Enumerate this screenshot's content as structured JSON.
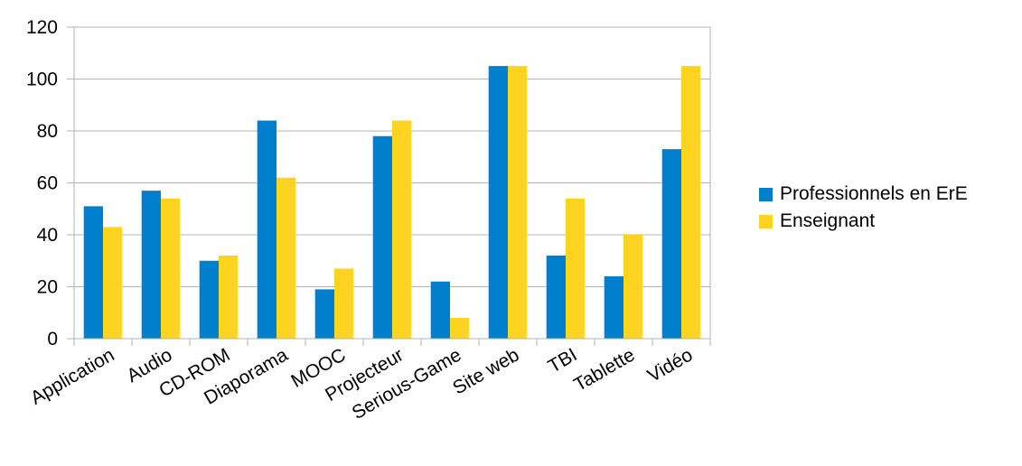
{
  "chart_data": {
    "type": "bar",
    "categories": [
      "Application",
      "Audio",
      "CD-ROM",
      "Diaporama",
      "MOOC",
      "Projecteur",
      "Serious-Game",
      "Site web",
      "TBI",
      "Tablette",
      "Vidéo"
    ],
    "series": [
      {
        "name": "Professionnels en ErE",
        "color": "#0080CC",
        "values": [
          51,
          57,
          30,
          84,
          19,
          78,
          22,
          105,
          32,
          24,
          73
        ]
      },
      {
        "name": "Enseignant",
        "color": "#FFD320",
        "values": [
          43,
          54,
          32,
          62,
          27,
          84,
          8,
          105,
          54,
          40,
          105
        ]
      }
    ],
    "ylim": [
      0,
      120
    ],
    "yticks": [
      0,
      20,
      40,
      60,
      80,
      100,
      120
    ],
    "grid": "horizontal",
    "legend_position": "right",
    "title": "",
    "xlabel": "",
    "ylabel": ""
  }
}
